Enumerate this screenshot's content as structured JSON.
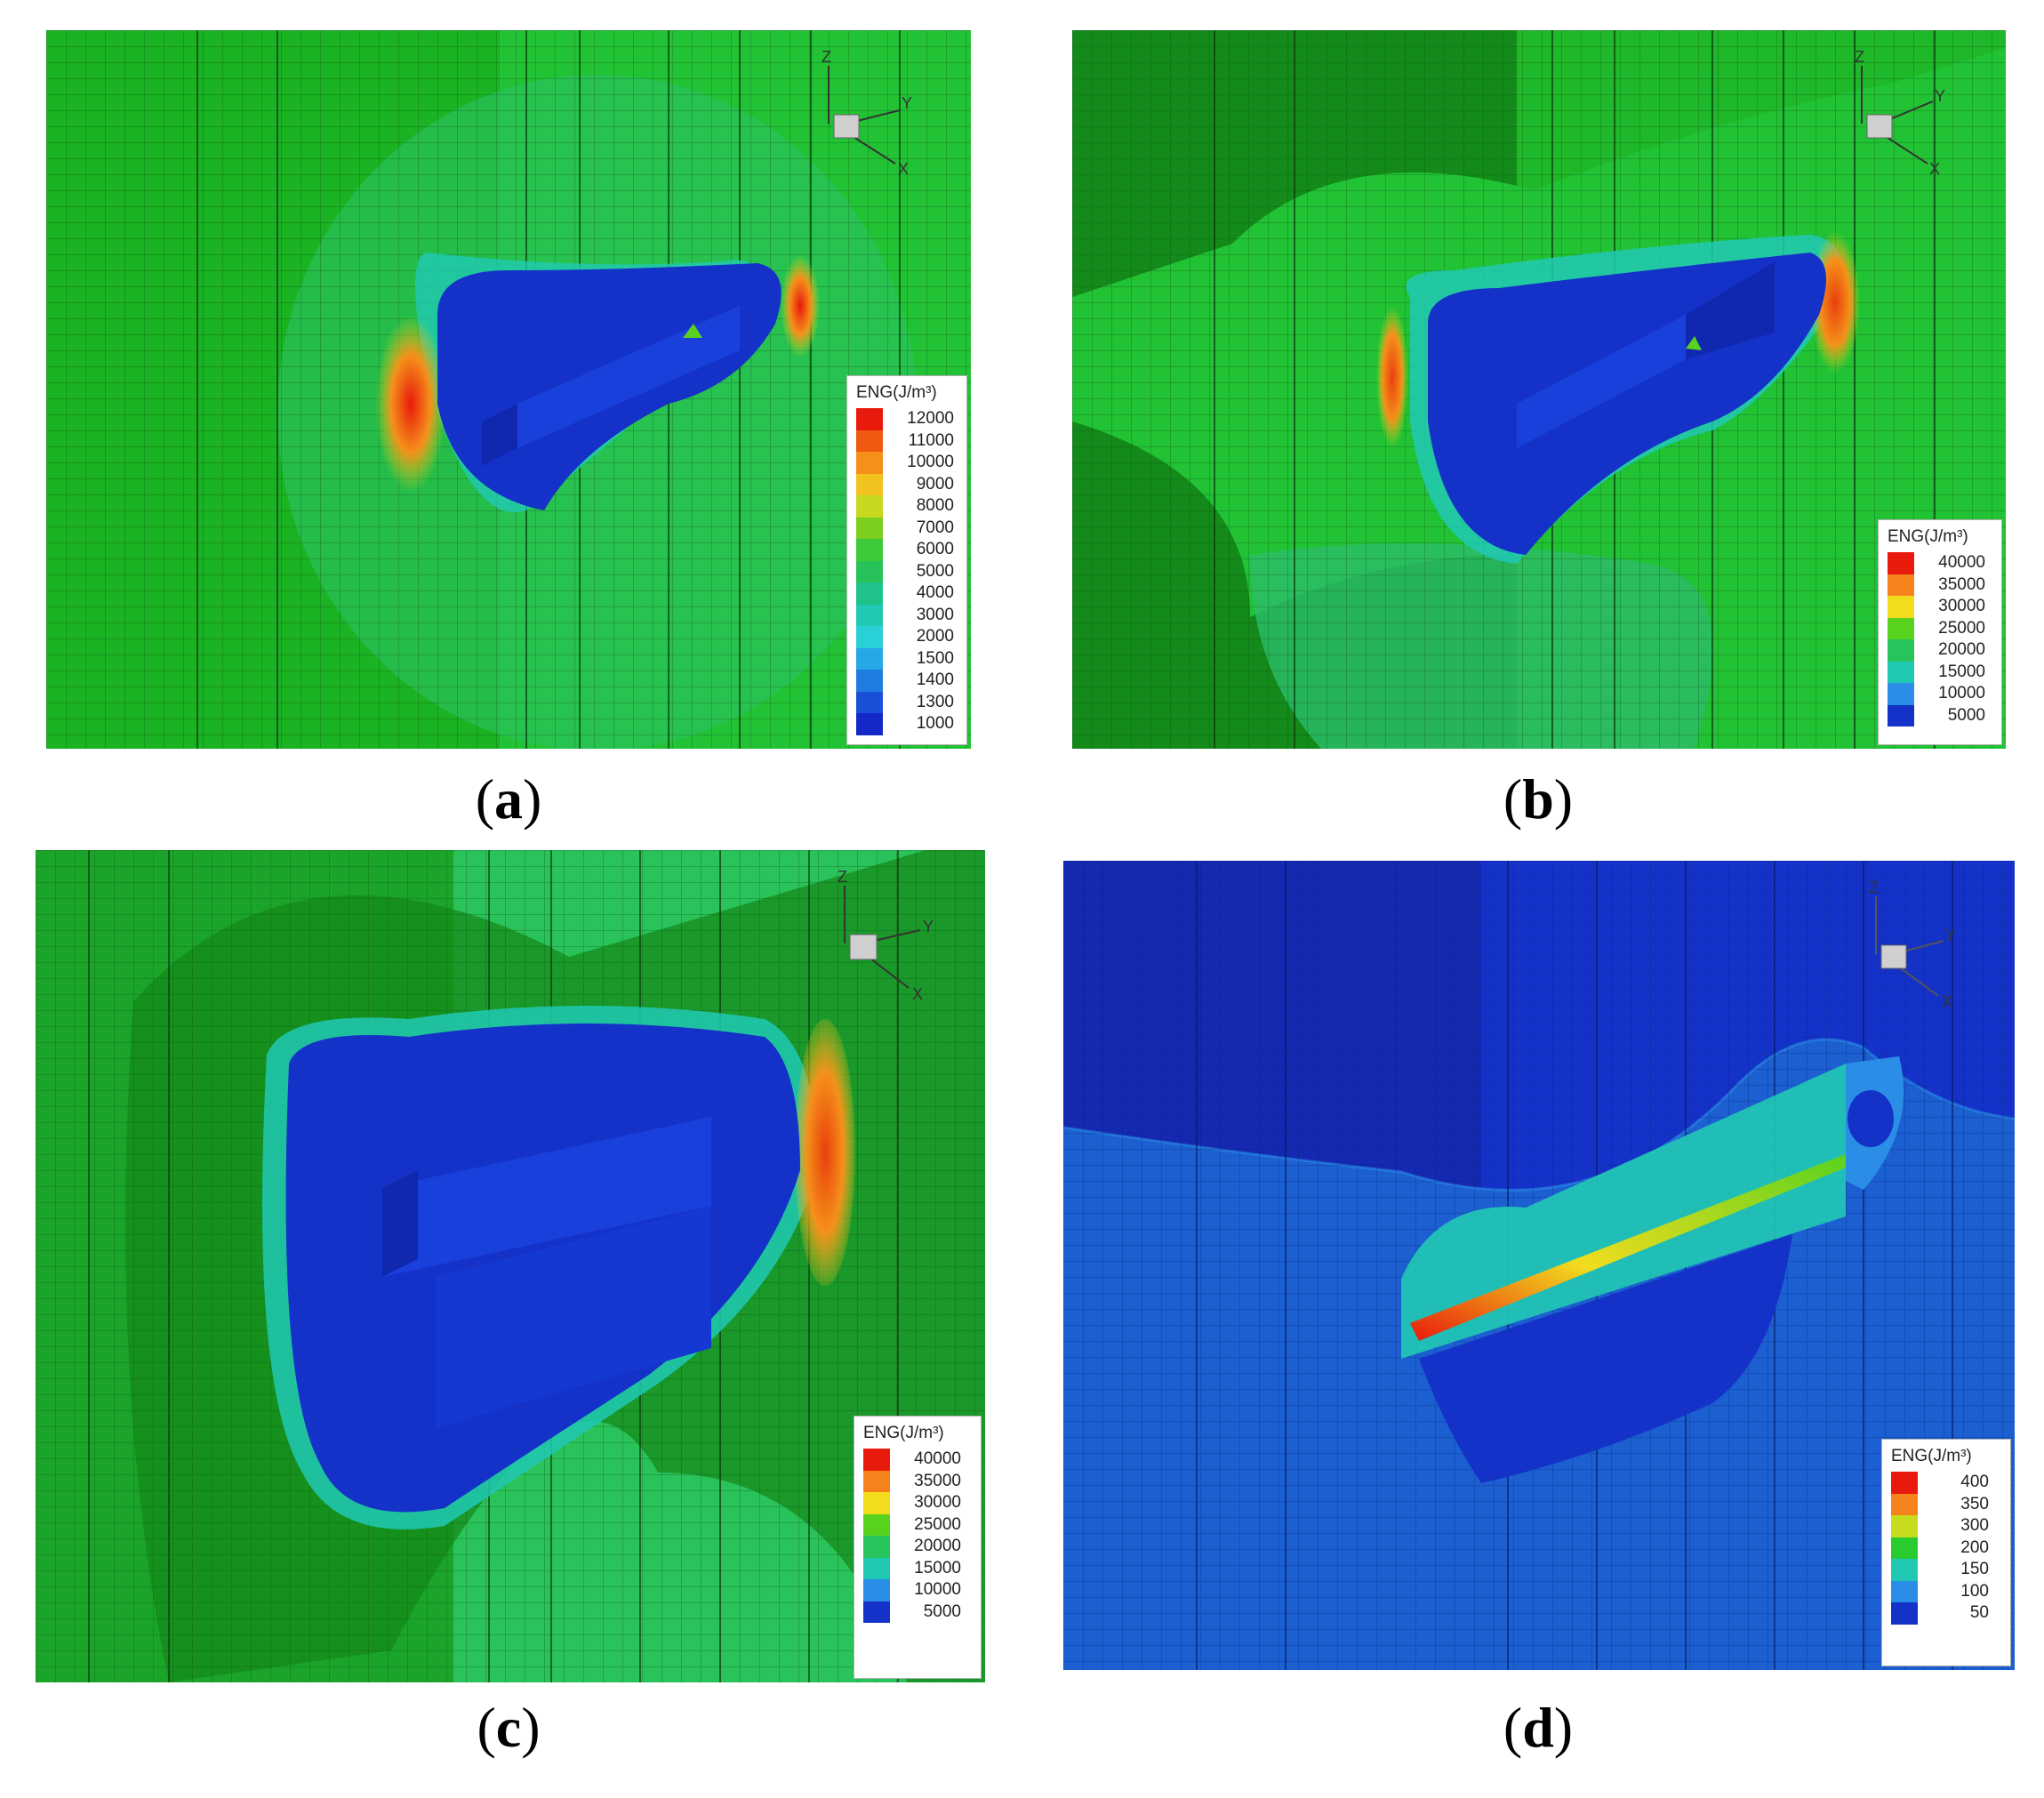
{
  "panels": [
    {
      "id": "a",
      "caption_open": "(",
      "caption_letter": "a",
      "caption_close": ")",
      "legend_title": "ENG(J/m³)",
      "legend_levels": [
        "12000",
        "11000",
        "10000",
        "9000",
        "8000",
        "7000",
        "6000",
        "5000",
        "4000",
        "3000",
        "2000",
        "1500",
        "1400",
        "1300",
        "1000"
      ],
      "legend_colors": [
        "#e81a0c",
        "#f05a10",
        "#f5901a",
        "#f2c21e",
        "#c8d81e",
        "#7ccf1e",
        "#3cc93a",
        "#27c25a",
        "#1fc38a",
        "#21c9b4",
        "#2ad0d8",
        "#26a8e8",
        "#1f7de0",
        "#1a4fd8",
        "#1428c8"
      ],
      "axes": {
        "z": "Z",
        "y": "Y",
        "x": "X"
      },
      "colors": {
        "background": "#1bb324",
        "cavity": "#1432c8",
        "hotspot": "#e81a0c"
      }
    },
    {
      "id": "b",
      "caption_open": "(",
      "caption_letter": "b",
      "caption_close": ")",
      "legend_title": "ENG(J/m³)",
      "legend_levels": [
        "40000",
        "35000",
        "30000",
        "25000",
        "20000",
        "15000",
        "10000",
        "5000"
      ],
      "legend_colors": [
        "#e81a0c",
        "#f5821a",
        "#f2dc1e",
        "#59d21e",
        "#26c45a",
        "#21c9b4",
        "#2a8ee6",
        "#1432c8"
      ],
      "axes": {
        "z": "Z",
        "y": "Y",
        "x": "X"
      },
      "colors": {
        "background": "#1bb324",
        "cavity": "#1432c8",
        "hotspot": "#e85510"
      }
    },
    {
      "id": "c",
      "caption_open": "(",
      "caption_letter": "c",
      "caption_close": ")",
      "legend_title": "ENG(J/m³)",
      "legend_levels": [
        "40000",
        "35000",
        "30000",
        "25000",
        "20000",
        "15000",
        "10000",
        "5000"
      ],
      "legend_colors": [
        "#e81a0c",
        "#f5821a",
        "#f2dc1e",
        "#59d21e",
        "#26c45a",
        "#21c9b4",
        "#2a8ee6",
        "#1432c8"
      ],
      "axes": {
        "z": "Z",
        "y": "Y",
        "x": "X"
      },
      "colors": {
        "background": "#1fbf4a",
        "cavity": "#1432c8",
        "hotspot": "#e8400c"
      }
    },
    {
      "id": "d",
      "caption_open": "(",
      "caption_letter": "d",
      "caption_close": ")",
      "legend_title": "ENG(J/m³)",
      "legend_levels": [
        "400",
        "350",
        "300",
        "200",
        "150",
        "100",
        "50"
      ],
      "legend_colors": [
        "#e81a0c",
        "#f5821a",
        "#c8dc1e",
        "#29cc2e",
        "#21c9b4",
        "#2a8ee6",
        "#1432c8"
      ],
      "axes": {
        "z": "Z",
        "y": "Y",
        "x": "X"
      },
      "colors": {
        "background": "#1c5fd0",
        "cavity": "#1432c8",
        "hotspot": "#f2c21e"
      }
    }
  ]
}
